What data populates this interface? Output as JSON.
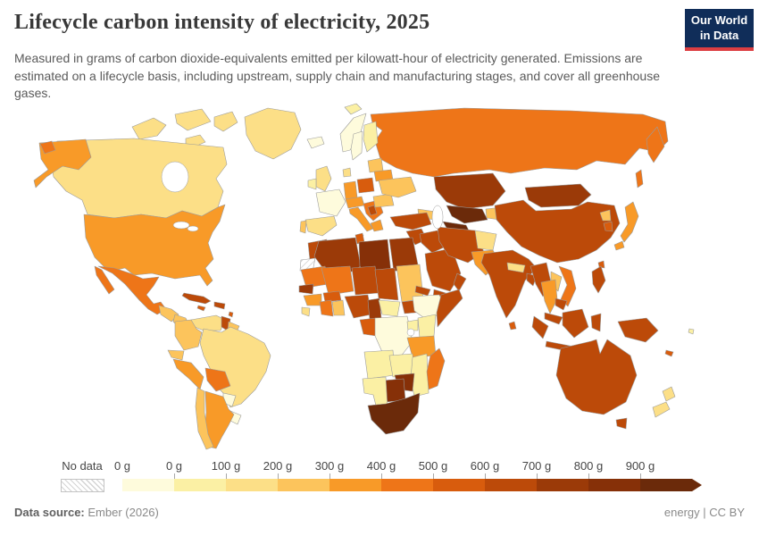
{
  "header": {
    "title": "Lifecycle carbon intensity of electricity, 2025",
    "subtitle": "Measured in grams of carbon dioxide-equivalents emitted per kilowatt-hour of electricity generated. Emissions are estimated on a lifecycle basis, including upstream, supply chain and manufacturing stages, and cover all greenhouse gases.",
    "logo": {
      "line1": "Our World",
      "line2": "in Data",
      "bg_color": "#102d59",
      "accent_color": "#dc3e42"
    }
  },
  "chart_data": {
    "type": "choropleth",
    "title": "Lifecycle carbon intensity of electricity, 2025",
    "unit": "grams of CO2-equivalents per kilowatt-hour",
    "year": "2025",
    "legend": {
      "no_data_label": "No data",
      "tick_labels": [
        "0 g",
        "0 g",
        "100 g",
        "200 g",
        "300 g",
        "400 g",
        "500 g",
        "600 g",
        "700 g",
        "800 g",
        "900 g"
      ],
      "palette": [
        "#fefbdc",
        "#fbf0a4",
        "#fcdf87",
        "#fcc45c",
        "#f89a28",
        "#ee7518",
        "#d85c0d",
        "#bc4a09",
        "#9b3a08",
        "#863008",
        "#6b2a0a"
      ],
      "border_color": "#9b9b9b",
      "arrow_end": true
    },
    "bins": [
      "0 g",
      "0–100 g",
      "100–200 g",
      "200–300 g",
      "300–400 g",
      "400–500 g",
      "500–600 g",
      "600–700 g",
      "700–800 g",
      "800–900 g",
      "900+ g"
    ],
    "regions": {
      "svalbard": 1,
      "canadian-arctic-islands": 2,
      "greenland": 2,
      "iceland": 0,
      "canada": 2,
      "alaska": 4,
      "chukotka": 5,
      "usa": 4,
      "mexico": 5,
      "guatemala": 3,
      "honduras-nicaragua": 3,
      "costa-rica-panama": 2,
      "cuba": 7,
      "hispaniola": 7,
      "jamaica": 6,
      "lesser-antilles": 6,
      "venezuela": 2,
      "guyana": 7,
      "suriname": 3,
      "colombia": 3,
      "ecuador": 3,
      "peru": 4,
      "brazil": 2,
      "bolivia": 5,
      "paraguay": 0,
      "uruguay": 0,
      "argentina": 4,
      "chile": 3,
      "united-kingdom": 2,
      "ireland": 1,
      "norway": 0,
      "sweden": 0,
      "finland": 1,
      "denmark": 2,
      "baltic-states": 3,
      "france": 0,
      "spain": 2,
      "portugal": 3,
      "germany": 4,
      "poland": 6,
      "central-europe": 4,
      "italy": 4,
      "balkans": 5,
      "serbia": 7,
      "greece": 4,
      "romania": 3,
      "ukraine": 3,
      "belarus": 4,
      "russia": 5,
      "kazakhstan": 8,
      "uzbekistan": 10,
      "turkmenistan": 10,
      "kyrgyzstan-tajikistan": 3,
      "caucasus": 3,
      "turkey": 7,
      "syria-jordan": 7,
      "iraq": 7,
      "saudi-arabia": 7,
      "yemen": 7,
      "oman": 7,
      "iran": 7,
      "afghanistan": 2,
      "pakistan": 4,
      "india": 7,
      "nepal": 2,
      "bangladesh": 7,
      "sri-lanka": 6,
      "china": 7,
      "mongolia": 8,
      "north-korea": 3,
      "south-korea": 6,
      "japan": 4,
      "taiwan": 6,
      "myanmar": 7,
      "thailand": 4,
      "laos": 3,
      "vietnam": 5,
      "cambodia": 7,
      "malaysia": 7,
      "indonesia": 7,
      "papua-new-guinea": 7,
      "philippines": 7,
      "morocco": 7,
      "western-sahara": -1,
      "algeria": 8,
      "tunisia": 6,
      "libya": 9,
      "egypt": 8,
      "mauritania": 5,
      "mali": 5,
      "niger": 7,
      "chad": 7,
      "sudan": 3,
      "south-sudan": 7,
      "eritrea": 7,
      "ethiopia": 0,
      "somalia": 7,
      "senegal": 8,
      "guinea": 4,
      "sierra-leone": 2,
      "ivory-coast": 5,
      "ghana": 3,
      "burkina-faso": 6,
      "nigeria": 7,
      "cameroon": 8,
      "central-african-republic": 1,
      "gabon-congo": 6,
      "dr-congo": 0,
      "uganda": 1,
      "kenya": 1,
      "tanzania": 4,
      "angola": 1,
      "zambia": 1,
      "mozambique": 1,
      "zimbabwe": 9,
      "botswana": 9,
      "namibia": 1,
      "south-africa": 10,
      "madagascar": 5,
      "australia": 7,
      "new-zealand": 2,
      "new-caledonia": 6,
      "fiji": 1
    }
  },
  "footer": {
    "source_label": "Data source:",
    "source_value": "Ember (2026)",
    "right_text": "energy | CC BY"
  }
}
